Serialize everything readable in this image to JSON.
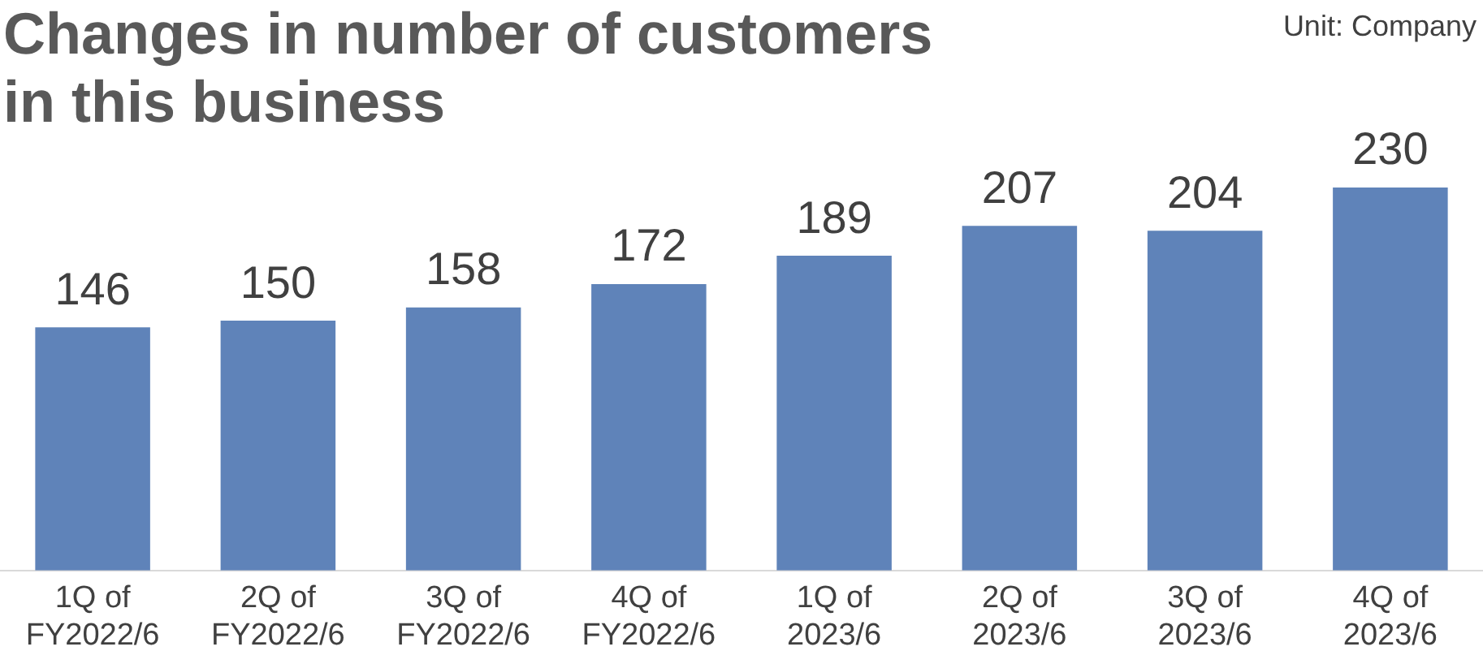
{
  "chart_data": {
    "type": "bar",
    "title": "Changes in number of customers in this business",
    "annotations": [
      "Unit: Company"
    ],
    "categories": [
      "1Q of\nFY2022/6",
      "2Q of\nFY2022/6",
      "3Q of\nFY2022/6",
      "4Q of\nFY2022/6",
      "1Q of\n2023/6",
      "2Q of\n2023/6",
      "3Q of\n2023/6",
      "4Q of\n2023/6"
    ],
    "values": [
      146,
      150,
      158,
      172,
      189,
      207,
      204,
      230
    ],
    "color": "#5f83b9",
    "data_labels": true,
    "grid": false,
    "legend": false
  }
}
